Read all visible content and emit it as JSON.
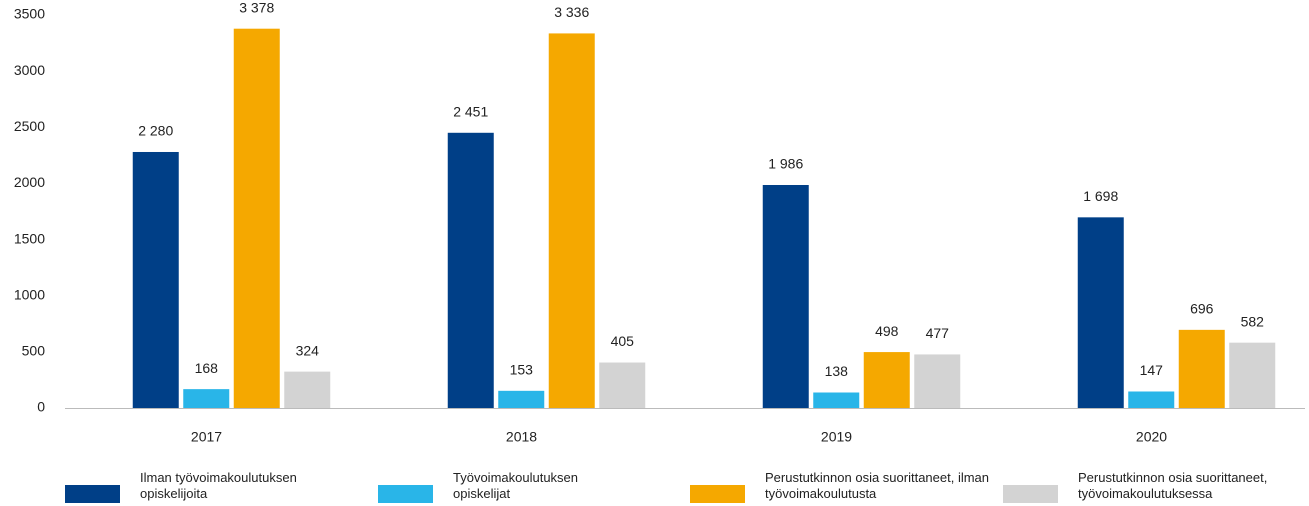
{
  "chart_data": {
    "type": "bar",
    "categories": [
      "2017",
      "2018",
      "2019",
      "2020"
    ],
    "series": [
      {
        "name": "Ilman työvoimakoulutuksen opiskelijoita",
        "color": "#003f87",
        "values": [
          2280,
          2451,
          1986,
          1698
        ],
        "value_labels": [
          "2 280",
          "2 451",
          "1 986",
          "1 698"
        ]
      },
      {
        "name": "Työvoimakoulutuksen opiskelijat",
        "color": "#29b5e8",
        "values": [
          168,
          153,
          138,
          147
        ]
      },
      {
        "name": "Perustutkinnon osia suorittaneet, ilman työvoimakoulutusta",
        "color": "#f5a800",
        "values": [
          3378,
          3336,
          498,
          696
        ],
        "value_labels": [
          "3 378",
          "3 336",
          "498",
          "696"
        ]
      },
      {
        "name": "Perustutkinnon osia suorittaneet, työvoimakoulutuksessa",
        "color": "#d3d3d3",
        "values": [
          324,
          405,
          477,
          582
        ]
      }
    ],
    "ylim": [
      0,
      3500
    ],
    "yticks": [
      0,
      500,
      1000,
      1500,
      2000,
      2500,
      3000,
      3500
    ],
    "grid": false,
    "legend": "bottom"
  }
}
